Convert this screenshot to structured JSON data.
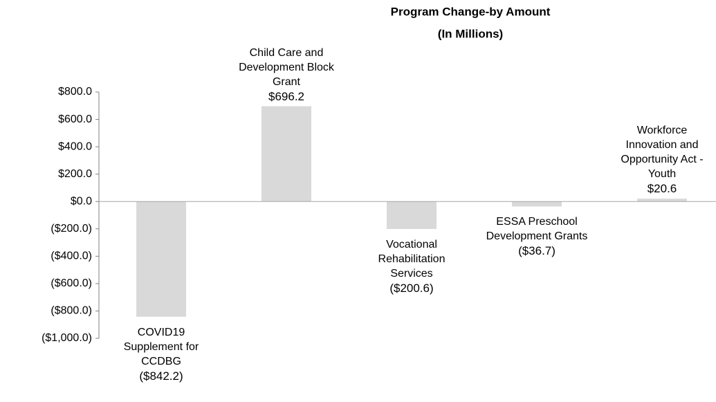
{
  "chart_data": {
    "type": "bar",
    "title": "Program Change-by Amount",
    "subtitle": "(In Millions)",
    "categories": [
      "COVID19 Supplement for CCDBG",
      "Child Care and Development Block Grant",
      "Vocational Rehabilitation Services",
      "ESSA Preschool Development Grants",
      "Workforce Innovation and Opportunity Act - Youth"
    ],
    "values": [
      -842.2,
      696.2,
      -200.6,
      -36.7,
      20.6
    ],
    "value_labels": [
      "($842.2)",
      "$696.2",
      "($200.6)",
      "($36.7)",
      "$20.6"
    ],
    "color": "#d9d9d9",
    "ylim": [
      -1000,
      800
    ],
    "yticks": [
      {
        "value": 800,
        "label": "$800.0"
      },
      {
        "value": 600,
        "label": "$600.0"
      },
      {
        "value": 400,
        "label": "$400.0"
      },
      {
        "value": 200,
        "label": "$200.0"
      },
      {
        "value": 0,
        "label": "$0.0"
      },
      {
        "value": -200,
        "label": "($200.0)"
      },
      {
        "value": -400,
        "label": "($400.0)"
      },
      {
        "value": -600,
        "label": "($600.0)"
      },
      {
        "value": -800,
        "label": "($800.0)"
      },
      {
        "value": -1000,
        "label": "($1,000.0)"
      }
    ],
    "grid": false
  }
}
